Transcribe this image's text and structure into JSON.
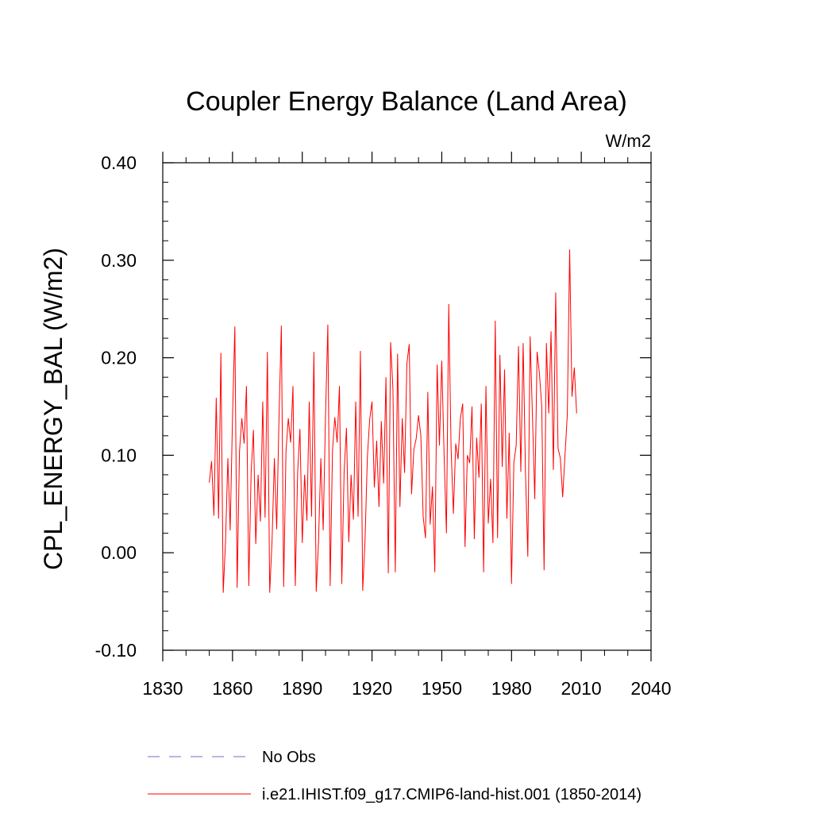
{
  "chart_data": {
    "type": "line",
    "title": "Coupler Energy Balance (Land Area)",
    "units_label": "W/m2",
    "xlabel": "",
    "ylabel": "CPL_ENERGY_BAL  (W/m2)",
    "xlim": [
      1830,
      2040
    ],
    "ylim": [
      -0.1,
      0.4
    ],
    "x_ticks": [
      1830,
      1860,
      1890,
      1920,
      1950,
      1980,
      2010,
      2040
    ],
    "x_tick_labels": [
      "1830",
      "1860",
      "1890",
      "1920",
      "1950",
      "1980",
      "2010",
      "2040"
    ],
    "y_ticks": [
      -0.1,
      0.0,
      0.1,
      0.2,
      0.3,
      0.4
    ],
    "y_tick_labels": [
      "-0.10",
      "0.00",
      "0.10",
      "0.20",
      "0.30",
      "0.40"
    ],
    "grid": false,
    "legend_position": "bottom",
    "series": [
      {
        "name": "No Obs",
        "color": "#8a8ad8",
        "style": "dashed",
        "x": [],
        "values": []
      },
      {
        "name": "i.e21.IHIST.f09_g17.CMIP6-land-hist.001 (1850-2014)",
        "color": "#ff0000",
        "style": "solid",
        "x_start": 1850,
        "x_end": 2014,
        "values": [
          0.072,
          0.094,
          0.038,
          0.159,
          0.035,
          0.205,
          -0.041,
          0.012,
          0.097,
          0.023,
          0.139,
          0.232,
          -0.036,
          0.104,
          0.138,
          0.112,
          0.171,
          -0.034,
          0.082,
          0.126,
          0.009,
          0.08,
          0.032,
          0.155,
          0.036,
          0.206,
          -0.041,
          0.012,
          0.097,
          0.024,
          0.139,
          0.233,
          -0.035,
          0.104,
          0.138,
          0.113,
          0.171,
          -0.034,
          0.082,
          0.127,
          0.01,
          0.08,
          0.033,
          0.155,
          0.037,
          0.206,
          -0.04,
          0.012,
          0.097,
          0.023,
          0.14,
          0.234,
          -0.034,
          0.105,
          0.139,
          0.113,
          0.171,
          -0.032,
          0.083,
          0.128,
          0.011,
          0.08,
          0.034,
          0.155,
          0.037,
          0.207,
          -0.039,
          0.013,
          0.098,
          0.137,
          0.155,
          0.067,
          0.115,
          0.047,
          0.135,
          0.071,
          0.18,
          -0.021,
          0.216,
          0.168,
          -0.02,
          0.204,
          0.047,
          0.138,
          0.082,
          0.194,
          0.214,
          0.06,
          0.106,
          0.117,
          0.141,
          0.12,
          0.037,
          0.015,
          0.165,
          0.029,
          0.068,
          -0.02,
          0.193,
          0.11,
          0.197,
          0.1,
          0.02,
          0.255,
          0.108,
          0.04,
          0.112,
          0.096,
          0.138,
          0.153,
          0.006,
          0.1,
          0.092,
          0.15,
          0.014,
          0.118,
          0.077,
          0.153,
          -0.02,
          0.171,
          0.03,
          0.076,
          0.01,
          0.238,
          0.015,
          0.203,
          0.088,
          0.188,
          0.035,
          0.123,
          -0.032,
          0.092,
          0.11,
          0.212,
          0.083,
          0.215,
          0.083,
          -0.004,
          0.222,
          0.14,
          0.055,
          0.206,
          0.184,
          0.15,
          -0.018,
          0.215,
          0.143,
          0.227,
          0.085,
          0.267,
          0.107,
          0.097,
          0.057,
          0.1,
          0.142,
          0.311,
          0.16,
          0.19,
          0.143
        ]
      }
    ]
  }
}
